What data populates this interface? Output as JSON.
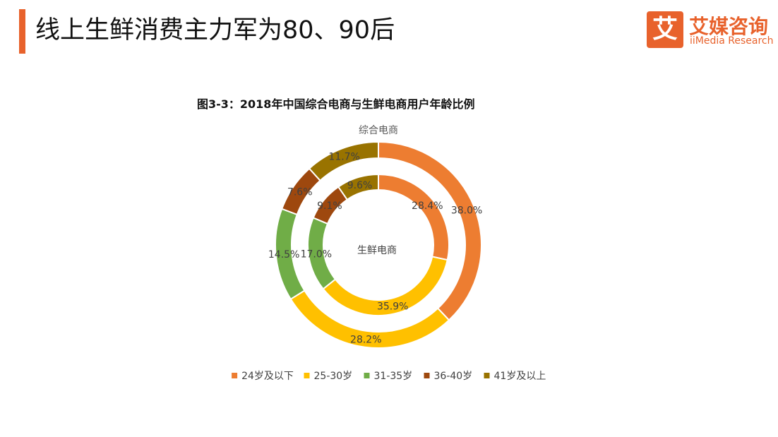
{
  "header": {
    "title": "线上生鲜消费主力军为80、90后",
    "accent_color": "#e8622c"
  },
  "logo": {
    "mark": "艾",
    "name_cn": "艾媒咨询",
    "name_en": "iiMedia Research"
  },
  "chart_data": {
    "type": "donut",
    "title": "图3-3：2018年中国综合电商与生鲜电商用户年龄比例",
    "categories": [
      "24岁及以下",
      "25-30岁",
      "31-35岁",
      "36-40岁",
      "41岁及以上"
    ],
    "colors": [
      "#ed7d31",
      "#ffc000",
      "#70ad47",
      "#9e480e",
      "#997300"
    ],
    "series": [
      {
        "name": "综合电商",
        "ring": "outer",
        "values": [
          38.0,
          28.2,
          14.5,
          7.6,
          11.7
        ],
        "labels": [
          "38.0%",
          "28.2%",
          "14.5%",
          "7.6%",
          "11.7%"
        ]
      },
      {
        "name": "生鲜电商",
        "ring": "inner",
        "values": [
          28.4,
          35.9,
          17.0,
          9.1,
          9.6
        ],
        "labels": [
          "28.4%",
          "35.9%",
          "17.0%",
          "9.1%",
          "9.6%"
        ]
      }
    ],
    "legend_position": "bottom"
  }
}
